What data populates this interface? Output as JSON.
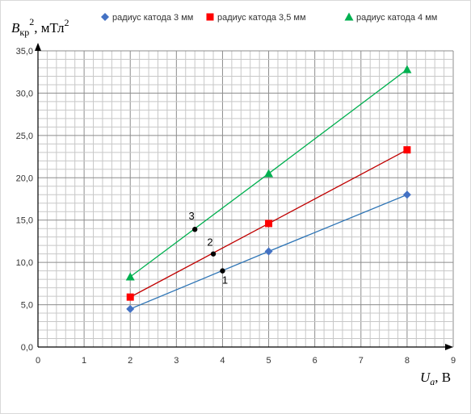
{
  "chart_data": {
    "type": "line",
    "title": "",
    "ylabel": {
      "main": "B",
      "sub": "кр",
      "sup": "2",
      "rest": ", мТл",
      "rest_sup": "2"
    },
    "xlabel": {
      "main": "U",
      "sub": "a",
      "rest": ", В"
    },
    "xlim": [
      0,
      9
    ],
    "ylim": [
      0,
      35
    ],
    "x_ticks": [
      0,
      1,
      2,
      3,
      4,
      5,
      6,
      7,
      8,
      9
    ],
    "x_tick_labels": [
      "0",
      "1",
      "2",
      "3",
      "4",
      "5",
      "6",
      "7",
      "8",
      "9"
    ],
    "y_ticks": [
      0,
      5,
      10,
      15,
      20,
      25,
      30,
      35
    ],
    "y_tick_labels": [
      "0,0",
      "5,0",
      "10,0",
      "15,0",
      "20,0",
      "25,0",
      "30,0",
      "35,0"
    ],
    "grid": true,
    "minor_grid": {
      "x_step": 0.2,
      "y_step": 1
    },
    "legend_position": "top",
    "series": [
      {
        "name": "радиус катода 3 мм",
        "marker": "diamond",
        "marker_color": "#4472C4",
        "line_color": "#2E75B6",
        "x": [
          2,
          5,
          8
        ],
        "y": [
          4.5,
          11.3,
          18.0
        ]
      },
      {
        "name": "радиус катода 3,5 мм",
        "marker": "square",
        "marker_color": "#FF0000",
        "line_color": "#C00000",
        "x": [
          2,
          5,
          8
        ],
        "y": [
          5.9,
          14.6,
          23.3
        ]
      },
      {
        "name": "радиус катода 4 мм",
        "marker": "triangle",
        "marker_color": "#00B050",
        "line_color": "#00B050",
        "x": [
          2,
          5,
          8
        ],
        "y": [
          8.3,
          20.5,
          32.8
        ]
      }
    ],
    "annotations": [
      {
        "label": "1",
        "x": 4.0,
        "y": 9.0
      },
      {
        "label": "2",
        "x": 3.8,
        "y": 11.0
      },
      {
        "label": "3",
        "x": 3.4,
        "y": 13.9
      }
    ]
  }
}
